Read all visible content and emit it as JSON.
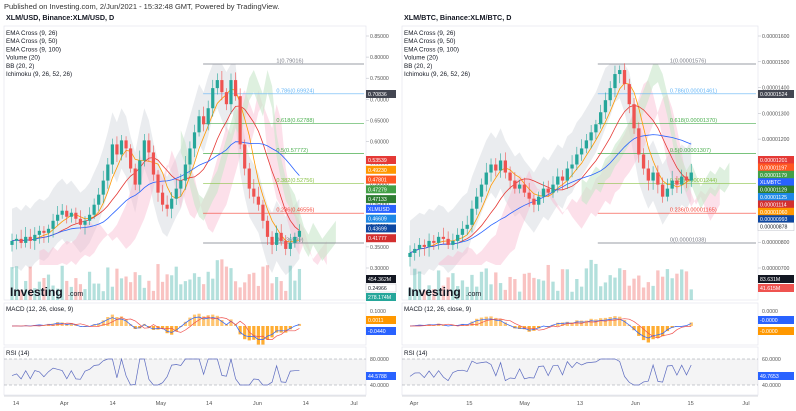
{
  "header": {
    "text": "Published on Investing.com, 2/Jun/2021 - 15:32:48 GMT, Powered by TradingView."
  },
  "chart_data": [
    {
      "type": "candlestick",
      "title": "XLM/USD, Binance:XLM/USD, D",
      "indicators": [
        "EMA Cross (9, 26)",
        "EMA Cross (9, 50)",
        "EMA Cross (9, 100)",
        "Volume (20)",
        "BB (20, 2)",
        "Ichimoku (9, 26, 52, 26)"
      ],
      "watermark": "Investing",
      "watermark_suffix": ".com",
      "x_ticks": [
        "14",
        "Apr",
        "14",
        "May",
        "14",
        "Jun",
        "14",
        "Jul"
      ],
      "price_ticks": [
        "0.85000",
        "0.80000",
        "0.75000",
        "0.70000",
        "0.65000",
        "0.60000",
        "0.55000",
        "0.50000",
        "0.45000",
        "0.40000",
        "0.35000",
        "0.30000"
      ],
      "fib_levels": [
        {
          "label": "1(0.79016)",
          "color": "#787b86"
        },
        {
          "label": "0.786(0.69924)",
          "color": "#64b5f6"
        },
        {
          "label": "0.618(0.62788)",
          "color": "#4caf50"
        },
        {
          "label": "0.5(0.57772)",
          "color": "#4caf50"
        },
        {
          "label": "0.382(0.52756)",
          "color": "#8bc34a"
        },
        {
          "label": "0.236(0.46556)",
          "color": "#f44336"
        },
        {
          "label": "0(0.36529)",
          "color": "#787b86"
        }
      ],
      "price_badges": [
        {
          "label": "0.70836",
          "color": "#434651"
        },
        {
          "label": "0.53539",
          "color": "#e53935"
        },
        {
          "label": "0.49230",
          "color": "#ff9800"
        },
        {
          "label": "0.47801",
          "color": "#ff5722"
        },
        {
          "label": "0.47279",
          "color": "#43a047"
        },
        {
          "label": "0.47133",
          "color": "#2e7d32"
        },
        {
          "label": "XLMUSD",
          "color": "#2962ff"
        },
        {
          "label": "0.46609",
          "color": "#1e88e5"
        },
        {
          "label": "0.43699",
          "color": "#0d47a1"
        },
        {
          "label": "0.41777",
          "color": "#d32f2f"
        }
      ],
      "volume_badges": [
        {
          "label": "454.362M",
          "color": "#131722"
        },
        {
          "label": "0.24966",
          "color": "#ffffff"
        },
        {
          "label": "278.174M",
          "color": "#26a69a"
        }
      ],
      "macd": {
        "label": "MACD (12, 26, close, 9)",
        "ticks": [
          "0.1000"
        ],
        "badges": [
          {
            "label": "0.0011",
            "color": "#ff9800"
          },
          {
            "label": "-0.0440",
            "color": "#2962ff"
          }
        ]
      },
      "rsi": {
        "label": "RSI (14)",
        "ticks": [
          "80.0000",
          "40.0000"
        ],
        "badges": [
          {
            "label": "44.5788",
            "color": "#2962ff"
          }
        ]
      }
    },
    {
      "type": "candlestick",
      "title": "XLM/BTC, Binance:XLM/BTC, D",
      "indicators": [
        "EMA Cross (9, 26)",
        "EMA Cross (9, 50)",
        "EMA Cross (9, 100)",
        "Volume (20)",
        "BB (20, 2)",
        "Ichimoku (9, 26, 52, 26)"
      ],
      "watermark": "Investing",
      "watermark_suffix": ".com",
      "x_ticks": [
        "Apr",
        "15",
        "May",
        "13",
        "Jun",
        "15",
        "Jul"
      ],
      "price_ticks": [
        "0.00001600",
        "0.00001500",
        "0.00001400",
        "0.00001300",
        "0.00001200",
        "0.00001100",
        "0.00001000",
        "0.00000900",
        "0.00000800",
        "0.00000700"
      ],
      "fib_levels": [
        {
          "label": "1(0.00001576)",
          "color": "#787b86"
        },
        {
          "label": "0.786(0.00001461)",
          "color": "#64b5f6"
        },
        {
          "label": "0.618(0.00001370)",
          "color": "#4caf50"
        },
        {
          "label": "0.5(0.00001307)",
          "color": "#4caf50"
        },
        {
          "label": "0.382(0.00001244)",
          "color": "#8bc34a"
        },
        {
          "label": "0.236(0.00001165)",
          "color": "#f44336"
        },
        {
          "label": "0(0.00001038)",
          "color": "#787b86"
        }
      ],
      "price_badges": [
        {
          "label": "0.00001524",
          "color": "#434651"
        },
        {
          "label": "0.00001201",
          "color": "#e53935"
        },
        {
          "label": "0.00001197",
          "color": "#ff5722"
        },
        {
          "label": "0.00001179",
          "color": "#43a047"
        },
        {
          "label": "XLMBTC",
          "color": "#2962ff"
        },
        {
          "label": "0.00001129",
          "color": "#2e7d32"
        },
        {
          "label": "0.00001125",
          "color": "#1e88e5"
        },
        {
          "label": "0.00001114",
          "color": "#d32f2f"
        },
        {
          "label": "0.00001060",
          "color": "#ff9800"
        },
        {
          "label": "0.00000993",
          "color": "#0d47a1"
        },
        {
          "label": "0.00000878",
          "color": "#ffffff"
        }
      ],
      "volume_badges": [
        {
          "label": "83.631M",
          "color": "#131722"
        },
        {
          "label": "41.615M",
          "color": "#ef5350"
        }
      ],
      "macd": {
        "label": "MACD (12, 26, close, 9)",
        "ticks": [
          "0.0000"
        ],
        "badges": [
          {
            "label": "-0.0000",
            "color": "#2962ff"
          },
          {
            "label": "-0.0000",
            "color": "#ff9800"
          }
        ]
      },
      "rsi": {
        "label": "RSI (14)",
        "ticks": [
          "60.0000",
          "40.0000"
        ],
        "badges": [
          {
            "label": "49.7653",
            "color": "#2962ff"
          }
        ]
      }
    }
  ]
}
